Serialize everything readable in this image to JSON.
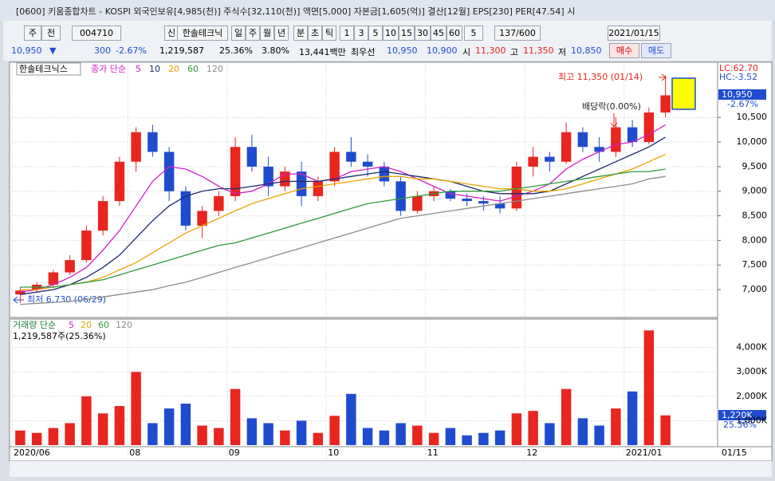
{
  "window": {
    "title": "[0600] 키움종합차트 - KOSPI 외국인보유[4,985(천)] 주식수[32,110(천)] 액면[5,000] 자본금[1,605(억)] 결산[12월] EPS[230] PER[47.54] 시",
    "toolbar": [
      "주",
      "전",
      "004710",
      "신",
      "한솔테크닉",
      "일",
      "주",
      "월",
      "년",
      "분",
      "초",
      "틱",
      "1",
      "3",
      "5",
      "10",
      "15",
      "30",
      "45",
      "60",
      "5",
      "137/600",
      "2021/01/15"
    ],
    "quote": [
      "10,950",
      "▼",
      "300",
      "-2.67%",
      "1,219,587",
      "25.36%",
      "3.80%",
      "13,441백만",
      "최우선",
      "10,950",
      "10,900",
      "시",
      "11,300",
      "고",
      "11,350",
      "저",
      "10,850"
    ],
    "buy": "매수",
    "sell": "매도"
  },
  "chart_data": {
    "type": "candlestick",
    "stock": "한솔테크닉스",
    "ma_label": "종가 단순",
    "categories": [
      "2020/06",
      null,
      null,
      null,
      null,
      null,
      null,
      "08",
      null,
      null,
      null,
      null,
      null,
      "09",
      null,
      null,
      null,
      null,
      null,
      "10",
      null,
      null,
      null,
      null,
      null,
      "11",
      null,
      null,
      null,
      null,
      null,
      "12",
      null,
      null,
      null,
      null,
      null,
      "2021/01",
      null,
      null
    ],
    "x_end_label": "01/15",
    "open": [
      6900,
      7000,
      7100,
      7350,
      7600,
      8200,
      8800,
      9600,
      10200,
      9800,
      9000,
      8300,
      8600,
      8900,
      9900,
      9500,
      9100,
      9400,
      8900,
      9200,
      9800,
      9600,
      9500,
      9200,
      8600,
      8900,
      9000,
      8850,
      8800,
      8750,
      8650,
      9500,
      9700,
      9600,
      10200,
      9900,
      9800,
      10300,
      10000,
      10600
    ],
    "high": [
      7050,
      7150,
      7400,
      7700,
      8300,
      8900,
      9700,
      10300,
      10350,
      9900,
      9100,
      8700,
      9000,
      10100,
      10150,
      9700,
      9500,
      9600,
      9300,
      9900,
      10100,
      9750,
      9600,
      9300,
      9000,
      9100,
      9050,
      8950,
      8900,
      8900,
      9600,
      9900,
      9800,
      10400,
      10300,
      10100,
      10500,
      10450,
      10700,
      11350
    ],
    "low": [
      6730,
      6950,
      7050,
      7300,
      7550,
      8100,
      8700,
      9400,
      9700,
      8800,
      8200,
      8050,
      8500,
      8800,
      9400,
      8900,
      9000,
      8700,
      8800,
      9100,
      9500,
      9300,
      9100,
      8500,
      8550,
      8800,
      8800,
      8700,
      8600,
      8550,
      8600,
      9300,
      9400,
      9550,
      9800,
      9600,
      9700,
      9900,
      9950,
      10500
    ],
    "close": [
      6980,
      7100,
      7350,
      7600,
      8200,
      8800,
      9600,
      10200,
      9800,
      9000,
      8300,
      8600,
      8900,
      9900,
      9500,
      9100,
      9400,
      8900,
      9200,
      9800,
      9600,
      9500,
      9200,
      8600,
      8900,
      9000,
      8850,
      8800,
      8750,
      8650,
      9500,
      9700,
      9600,
      10200,
      9900,
      9800,
      10300,
      10000,
      10600,
      10950
    ],
    "up_color": "#e8251f",
    "down_color": "#1f4ccf",
    "ylim": [
      6450,
      11590
    ],
    "yticks": [
      {
        "value": 7000,
        "label": "7,000"
      },
      {
        "value": 7500,
        "label": "7,500"
      },
      {
        "value": 8000,
        "label": "8,000"
      },
      {
        "value": 8500,
        "label": "8,500"
      },
      {
        "value": 9000,
        "label": "9,000"
      },
      {
        "value": 9500,
        "label": "9,500"
      },
      {
        "value": 10000,
        "label": "10,000"
      },
      {
        "value": 10500,
        "label": "10,500"
      }
    ],
    "grid": true,
    "series": [
      {
        "name": "5",
        "color": "#d01fc8",
        "values": [
          6950,
          7000,
          7100,
          7250,
          7450,
          7800,
          8200,
          8700,
          9200,
          9500,
          9450,
          9300,
          9100,
          8950,
          9000,
          9150,
          9350,
          9350,
          9200,
          9250,
          9400,
          9450,
          9500,
          9400,
          9250,
          9100,
          8950,
          8900,
          8850,
          8800,
          8900,
          9000,
          9150,
          9450,
          9650,
          9800,
          9950,
          10000,
          10150,
          10350
        ]
      },
      {
        "name": "10",
        "color": "#1a2a6c",
        "values": [
          6900,
          6950,
          7000,
          7100,
          7250,
          7450,
          7700,
          8050,
          8400,
          8700,
          8900,
          9000,
          9050,
          9050,
          9100,
          9150,
          9200,
          9200,
          9200,
          9250,
          9300,
          9350,
          9400,
          9350,
          9300,
          9250,
          9200,
          9100,
          9000,
          8950,
          8950,
          8950,
          9000,
          9150,
          9300,
          9450,
          9600,
          9750,
          9900,
          10100
        ]
      },
      {
        "name": "20",
        "color": "#e8a400",
        "values": [
          7000,
          7000,
          7050,
          7100,
          7150,
          7250,
          7400,
          7550,
          7750,
          7950,
          8150,
          8300,
          8450,
          8600,
          8750,
          8850,
          8950,
          9050,
          9100,
          9150,
          9200,
          9250,
          9300,
          9300,
          9250,
          9250,
          9200,
          9150,
          9100,
          9050,
          9050,
          9000,
          9000,
          9050,
          9150,
          9250,
          9350,
          9450,
          9600,
          9750
        ]
      },
      {
        "name": "60",
        "color": "#2e9a3a",
        "values": [
          7050,
          7050,
          7050,
          7100,
          7150,
          7200,
          7300,
          7400,
          7500,
          7600,
          7700,
          7800,
          7900,
          7950,
          8050,
          8150,
          8250,
          8350,
          8450,
          8550,
          8650,
          8750,
          8800,
          8850,
          8900,
          8950,
          9000,
          9000,
          9000,
          9000,
          9050,
          9100,
          9150,
          9200,
          9250,
          9300,
          9350,
          9400,
          9400,
          9450
        ]
      },
      {
        "name": "120",
        "color": "#8c8c8c",
        "values": [
          6700,
          6720,
          6740,
          6760,
          6800,
          6850,
          6900,
          6950,
          7000,
          7080,
          7150,
          7250,
          7350,
          7450,
          7550,
          7650,
          7750,
          7850,
          7950,
          8050,
          8150,
          8250,
          8350,
          8450,
          8500,
          8550,
          8600,
          8650,
          8700,
          8750,
          8800,
          8850,
          8900,
          8950,
          9000,
          9050,
          9100,
          9150,
          9250,
          9300
        ]
      }
    ],
    "annotations": {
      "high": "최고 11,350 (01/14)",
      "low": "최저 6,730 (06/29)",
      "dividend": "배당락(0.00%)"
    },
    "right_labels": {
      "lc": "LC:62.70",
      "hc": "HC:-3.52",
      "price": "10,950",
      "change": "-2.67%"
    },
    "volume": {
      "legend": [
        "거래량 단순",
        "5",
        "20",
        "60",
        "120"
      ],
      "info": "1,219,587주(25.36%)",
      "box": "1,220K",
      "pct": "25.36%",
      "values": [
        600000,
        500000,
        700000,
        900000,
        2000000,
        1300000,
        1600000,
        3000000,
        900000,
        1500000,
        1700000,
        800000,
        700000,
        2300000,
        1100000,
        900000,
        600000,
        1000000,
        500000,
        1200000,
        2100000,
        700000,
        600000,
        900000,
        800000,
        500000,
        700000,
        400000,
        500000,
        600000,
        1300000,
        1400000,
        900000,
        2300000,
        1100000,
        800000,
        1500000,
        2200000,
        4700000,
        1219587
      ],
      "ylim": [
        0,
        5100000
      ],
      "yticks": [
        {
          "value": 1000000,
          "label": "1,000K"
        },
        {
          "value": 2000000,
          "label": "2,000K"
        },
        {
          "value": 3000000,
          "label": "3,000K"
        },
        {
          "value": 4000000,
          "label": "4,000K"
        }
      ]
    }
  }
}
